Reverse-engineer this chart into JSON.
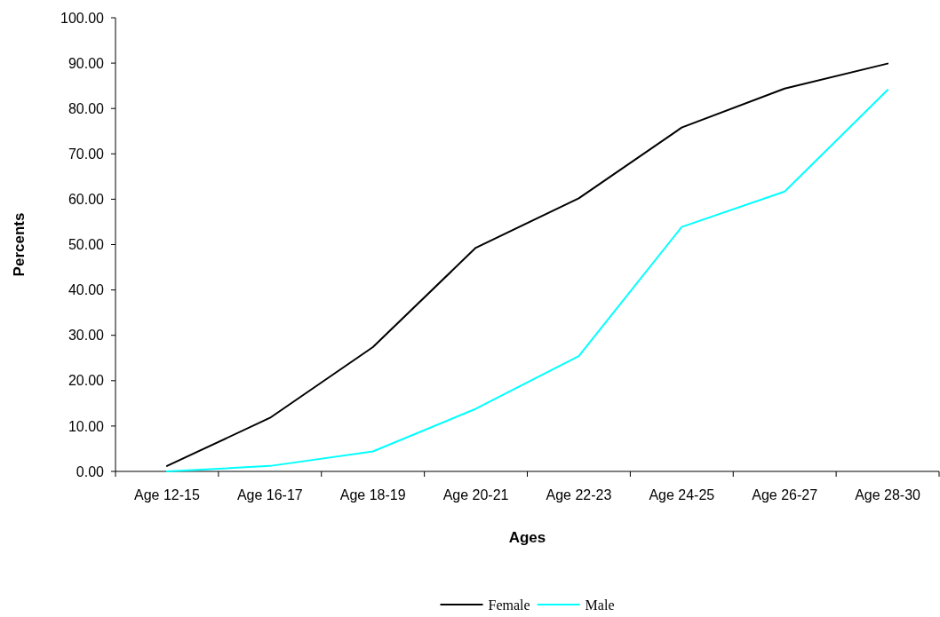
{
  "chart_data": {
    "type": "line",
    "xlabel": "Ages",
    "ylabel": "Percents",
    "categories": [
      "Age 12-15",
      "Age 16-17",
      "Age 18-19",
      "Age 20-21",
      "Age 22-23",
      "Age 24-25",
      "Age 26-27",
      "Age 28-30"
    ],
    "series": [
      {
        "name": "Female",
        "color": "#000000",
        "values": [
          1.2,
          11.8,
          27.4,
          49.3,
          60.2,
          75.8,
          84.4,
          89.9
        ]
      },
      {
        "name": "Male",
        "color": "#00ffff",
        "values": [
          0.0,
          1.2,
          4.4,
          13.8,
          25.4,
          53.9,
          61.7,
          84.1
        ]
      }
    ],
    "ylim": [
      0,
      100
    ],
    "yticks": [
      {
        "value": 0,
        "label": "0.00"
      },
      {
        "value": 10,
        "label": "10.00"
      },
      {
        "value": 20,
        "label": "20.00"
      },
      {
        "value": 30,
        "label": "30.00"
      },
      {
        "value": 40,
        "label": "40.00"
      },
      {
        "value": 50,
        "label": "50.00"
      },
      {
        "value": 60,
        "label": "60.00"
      },
      {
        "value": 70,
        "label": "70.00"
      },
      {
        "value": 80,
        "label": "80.00"
      },
      {
        "value": 90,
        "label": "90.00"
      },
      {
        "value": 100,
        "label": "100.00"
      }
    ],
    "grid": false,
    "legend": "bottom",
    "marker": "none",
    "line_style": "solid"
  }
}
